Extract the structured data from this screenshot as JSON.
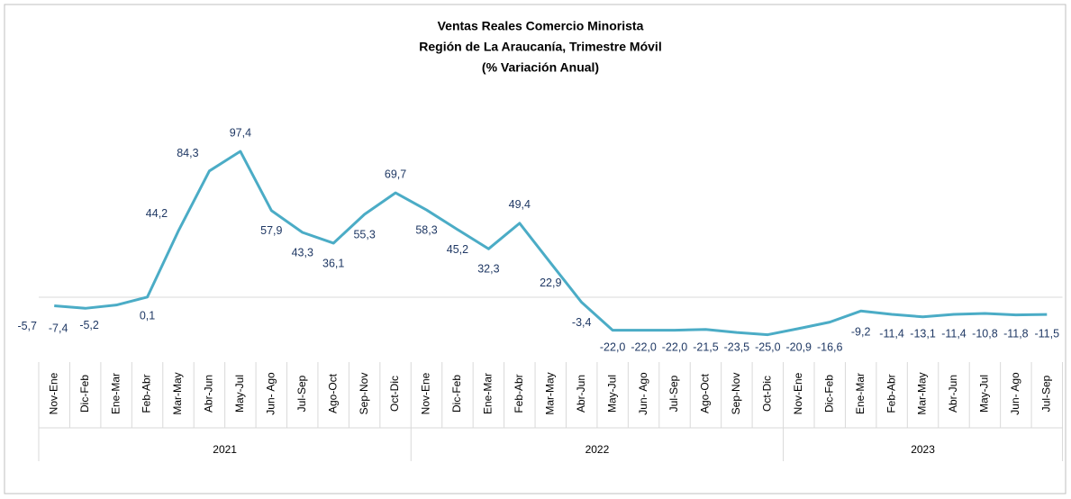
{
  "chart_data": {
    "type": "line",
    "title": [
      "Ventas Reales Comercio Minorista",
      "Región de La Araucanía, Trimestre Móvil",
      "(% Variación Anual)"
    ],
    "groups": [
      {
        "name": "2021",
        "categories": [
          "Nov-Ene",
          "Dic-Feb",
          "Ene-Mar",
          "Feb-Abr",
          "Mar-May",
          "Abr-Jun",
          "May-Jul",
          "Jun- Ago",
          "Jul-Sep",
          "Ago-Oct",
          "Sep-Nov",
          "Oct-Dic"
        ]
      },
      {
        "name": "2022",
        "categories": [
          "Nov-Ene",
          "Dic-Feb",
          "Ene-Mar",
          "Feb-Abr",
          "Mar-May",
          "Abr-Jun",
          "May-Jul",
          "Jun- Ago",
          "Jul-Sep",
          "Ago-Oct",
          "Sep-Nov",
          "Oct-Dic"
        ]
      },
      {
        "name": "2023",
        "categories": [
          "Nov-Ene",
          "Dic-Feb",
          "Ene-Mar",
          "Feb-Abr",
          "Mar-May",
          "Abr-Jun",
          "May-Jul",
          "Jun- Ago",
          "Jul-Sep"
        ]
      }
    ],
    "values": [
      -5.7,
      -7.4,
      -5.2,
      0.1,
      44.2,
      84.3,
      97.4,
      57.9,
      43.3,
      36.1,
      55.3,
      69.7,
      58.3,
      45.2,
      32.3,
      49.4,
      22.9,
      -3.4,
      -22.0,
      -22.0,
      -22.0,
      -21.5,
      -23.5,
      -25.0,
      -20.9,
      -16.6,
      -9.2,
      -11.4,
      -13.1,
      -11.4,
      -10.8,
      -11.8,
      -11.5
    ],
    "value_labels": [
      "-5,7",
      "-7,4",
      "-5,2",
      "0,1",
      "44,2",
      "84,3",
      "97,4",
      "57,9",
      "43,3",
      "36,1",
      "55,3",
      "69,7",
      "58,3",
      "45,2",
      "32,3",
      "49,4",
      "22,9",
      "-3,4",
      "-22,0",
      "-22,0",
      "-22,0",
      "-21,5",
      "-23,5",
      "-25,0",
      "-20,9",
      "-16,6",
      "-9,2",
      "-11,4",
      "-13,1",
      "-11,4",
      "-10,8",
      "-11,8",
      "-11,5"
    ],
    "color": "#4bacc6"
  }
}
